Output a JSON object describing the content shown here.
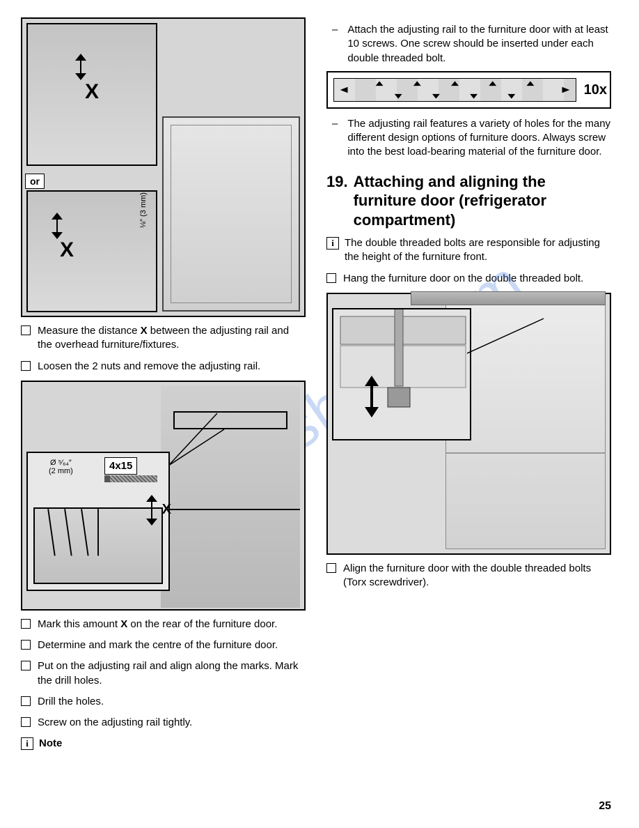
{
  "left": {
    "fig1": {
      "x_label": "X",
      "or_label": "or",
      "gap_label": "⅛″ (3 mm)"
    },
    "items1": [
      {
        "type": "check",
        "html": "Measure the distance <b>X</b> between the adjusting rail and the overhead furniture/fixtures."
      },
      {
        "type": "check",
        "html": "Loosen the 2 nuts and remove the adjusting rail."
      }
    ],
    "fig2": {
      "screw_label": "4x15",
      "drill_label": "Ø ⁵⁄₆₄″\n(2 mm)",
      "x_label": "X"
    },
    "items2": [
      {
        "type": "check",
        "html": "Mark this amount <b>X</b> on the rear of the furniture door."
      },
      {
        "type": "check",
        "html": "Determine and mark the centre of the furniture door."
      },
      {
        "type": "check",
        "html": "Put on the adjusting rail and align along the marks. Mark the drill holes."
      },
      {
        "type": "check",
        "html": "Drill the holes."
      },
      {
        "type": "check",
        "html": "Screw on the adjusting rail tightly."
      }
    ],
    "note_label": "Note"
  },
  "right": {
    "items_top": [
      {
        "type": "dash",
        "text": "Attach the adjusting rail to the furniture door with at least 10 screws. One screw should be inserted under each double threaded bolt."
      }
    ],
    "rail_fig": {
      "count_label": "10x"
    },
    "items_mid": [
      {
        "type": "dash",
        "text": "The adjusting rail features a variety of holes for the many different design options of furniture doors. Always screw into the best load-bearing material of the furniture door."
      }
    ],
    "section": {
      "number": "19.",
      "title": "Attaching and aligning the furniture door (refrigerator compartment)"
    },
    "info_text": "The double threaded bolts are responsible for adjusting the height of the furniture front.",
    "items_hang": [
      {
        "type": "check",
        "html": "Hang the furniture door on the double threaded bolt."
      }
    ],
    "items_align": [
      {
        "type": "check",
        "html": "Align the furniture door with the double threaded bolts (Torx screwdriver)."
      }
    ]
  },
  "page_number": "25",
  "watermark": "manualshive.com"
}
